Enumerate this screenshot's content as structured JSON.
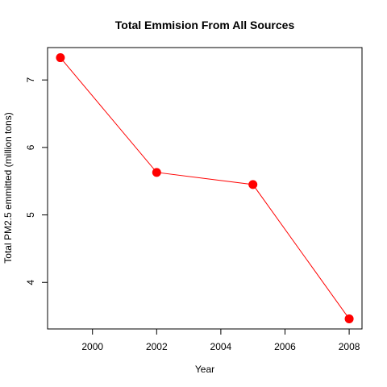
{
  "chart_data": {
    "type": "line",
    "title": "Total Emmision From All Sources",
    "xlabel": "Year",
    "ylabel": "Total PM2.5 emmitted (million tons)",
    "x": [
      1999,
      2002,
      2005,
      2008
    ],
    "series": [
      {
        "name": "Total PM2.5",
        "values": [
          7.33,
          5.63,
          5.45,
          3.46
        ]
      }
    ],
    "xlim": [
      1998.6,
      2008.4
    ],
    "ylim": [
      3.31,
      7.48
    ],
    "xticks": [
      2000,
      2002,
      2004,
      2006,
      2008
    ],
    "yticks": [
      4,
      5,
      6,
      7
    ],
    "line_color": "#ff0000",
    "marker_color": "#ff0000"
  }
}
